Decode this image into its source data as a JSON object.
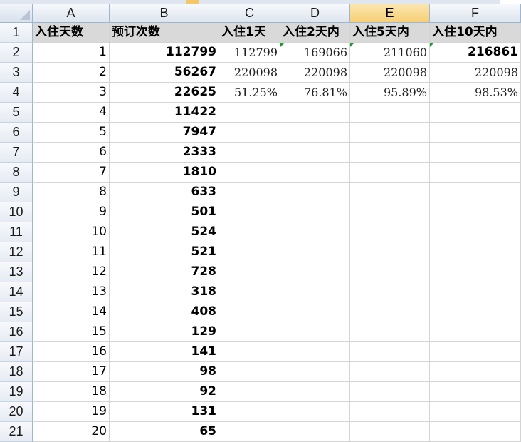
{
  "columns": [
    "A",
    "B",
    "C",
    "D",
    "E",
    "F"
  ],
  "active_column": "E",
  "rows": [
    {
      "n": "1",
      "A": "入住天数",
      "B": "预订次数",
      "C": "入住1天",
      "D": "入住2天内",
      "E": "入住5天内",
      "F": "入住10天内"
    },
    {
      "n": "2",
      "A": "1",
      "B": "112799",
      "C": "112799",
      "D": "169066",
      "E": "211060",
      "F": "216861"
    },
    {
      "n": "3",
      "A": "2",
      "B": "56267",
      "C": "220098",
      "D": "220098",
      "E": "220098",
      "F": "220098"
    },
    {
      "n": "4",
      "A": "3",
      "B": "22625",
      "C": "51.25%",
      "D": "76.81%",
      "E": "95.89%",
      "F": "98.53%"
    },
    {
      "n": "5",
      "A": "4",
      "B": "11422",
      "C": "",
      "D": "",
      "E": "",
      "F": ""
    },
    {
      "n": "6",
      "A": "5",
      "B": "7947",
      "C": "",
      "D": "",
      "E": "",
      "F": ""
    },
    {
      "n": "7",
      "A": "6",
      "B": "2333",
      "C": "",
      "D": "",
      "E": "",
      "F": ""
    },
    {
      "n": "8",
      "A": "7",
      "B": "1810",
      "C": "",
      "D": "",
      "E": "",
      "F": ""
    },
    {
      "n": "9",
      "A": "8",
      "B": "633",
      "C": "",
      "D": "",
      "E": "",
      "F": ""
    },
    {
      "n": "10",
      "A": "9",
      "B": "501",
      "C": "",
      "D": "",
      "E": "",
      "F": ""
    },
    {
      "n": "11",
      "A": "10",
      "B": "524",
      "C": "",
      "D": "",
      "E": "",
      "F": ""
    },
    {
      "n": "12",
      "A": "11",
      "B": "521",
      "C": "",
      "D": "",
      "E": "",
      "F": ""
    },
    {
      "n": "13",
      "A": "12",
      "B": "728",
      "C": "",
      "D": "",
      "E": "",
      "F": ""
    },
    {
      "n": "14",
      "A": "13",
      "B": "318",
      "C": "",
      "D": "",
      "E": "",
      "F": ""
    },
    {
      "n": "15",
      "A": "14",
      "B": "408",
      "C": "",
      "D": "",
      "E": "",
      "F": ""
    },
    {
      "n": "16",
      "A": "15",
      "B": "129",
      "C": "",
      "D": "",
      "E": "",
      "F": ""
    },
    {
      "n": "17",
      "A": "16",
      "B": "141",
      "C": "",
      "D": "",
      "E": "",
      "F": ""
    },
    {
      "n": "18",
      "A": "17",
      "B": "98",
      "C": "",
      "D": "",
      "E": "",
      "F": ""
    },
    {
      "n": "19",
      "A": "18",
      "B": "92",
      "C": "",
      "D": "",
      "E": "",
      "F": ""
    },
    {
      "n": "20",
      "A": "19",
      "B": "131",
      "C": "",
      "D": "",
      "E": "",
      "F": ""
    },
    {
      "n": "21",
      "A": "20",
      "B": "65",
      "C": "",
      "D": "",
      "E": "",
      "F": ""
    }
  ],
  "colors": {
    "header_fill": "#d9d9d9",
    "active_header": "#f7cf74",
    "error_flag": "#1f9a2e",
    "gridline": "#d4d4d4"
  }
}
